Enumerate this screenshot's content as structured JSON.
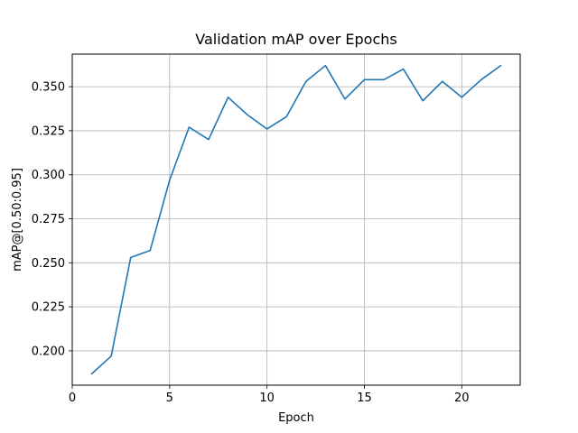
{
  "chart_data": {
    "type": "line",
    "title": "Validation mAP over Epochs",
    "xlabel": "Epoch",
    "ylabel": "mAP@[0.50:0.95]",
    "xlim": [
      0,
      23
    ],
    "ylim": [
      0.1805,
      0.3685
    ],
    "xticks": [
      0,
      5,
      10,
      15,
      20
    ],
    "yticks": [
      0.2,
      0.225,
      0.25,
      0.275,
      0.3,
      0.325,
      0.35
    ],
    "xtick_labels": [
      "0",
      "5",
      "10",
      "15",
      "20"
    ],
    "ytick_labels": [
      "0.200",
      "0.225",
      "0.250",
      "0.275",
      "0.300",
      "0.325",
      "0.350"
    ],
    "grid": true,
    "series": [
      {
        "color": "#1f77b4",
        "x": [
          1,
          2,
          3,
          4,
          5,
          6,
          7,
          8,
          9,
          10,
          11,
          12,
          13,
          14,
          15,
          16,
          17,
          18,
          19,
          20,
          21,
          22
        ],
        "y": [
          0.187,
          0.197,
          0.253,
          0.257,
          0.297,
          0.327,
          0.32,
          0.344,
          0.334,
          0.326,
          0.333,
          0.353,
          0.362,
          0.343,
          0.354,
          0.354,
          0.36,
          0.342,
          0.353,
          0.344,
          0.354,
          0.362
        ]
      }
    ]
  }
}
